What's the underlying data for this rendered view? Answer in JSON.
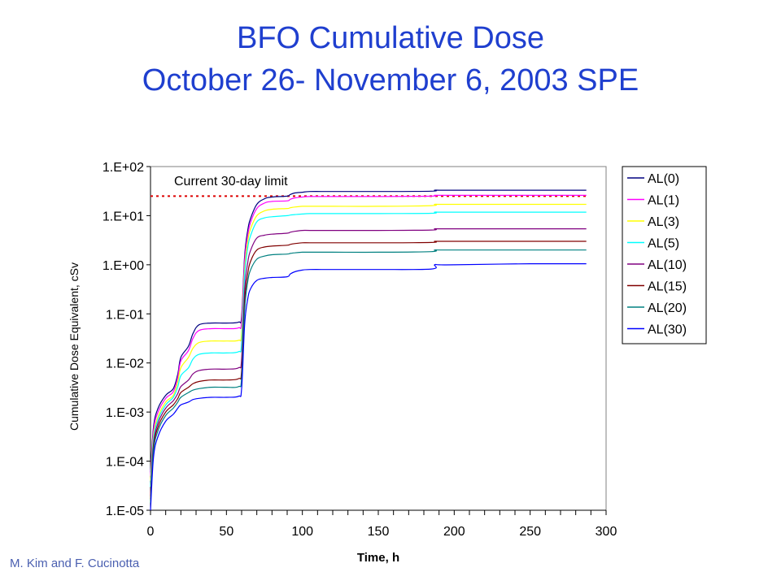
{
  "slide": {
    "title_line1": "BFO Cumulative Dose",
    "title_line2": "October 26- November 6, 2003 SPE",
    "credit": "M. Kim and F. Cucinotta"
  },
  "chart_data": {
    "type": "line",
    "title": "BFO Cumulative Dose October 26- November 6, 2003 SPE",
    "xlabel": "Time, h",
    "ylabel": "Cumulative Dose Equivalent, cSv",
    "xlim": [
      0,
      300
    ],
    "ylim": [
      1e-05,
      100
    ],
    "y_scale": "log",
    "x_ticks": [
      0,
      50,
      100,
      150,
      200,
      250,
      300
    ],
    "y_ticks": [
      {
        "value": 1e-05,
        "label": "1.E-05"
      },
      {
        "value": 0.0001,
        "label": "1.E-04"
      },
      {
        "value": 0.001,
        "label": "1.E-03"
      },
      {
        "value": 0.01,
        "label": "1.E-02"
      },
      {
        "value": 0.1,
        "label": "1.E-01"
      },
      {
        "value": 1,
        "label": "1.E+00"
      },
      {
        "value": 10,
        "label": "1.E+01"
      },
      {
        "value": 100,
        "label": "1.E+02"
      }
    ],
    "grid": false,
    "legend_position": "right",
    "reference_line": {
      "label": "Current 30-day limit",
      "value": 25,
      "color": "#dd0000"
    },
    "x": [
      0,
      2,
      5,
      10,
      15,
      18,
      20,
      25,
      28,
      32,
      40,
      50,
      58,
      60,
      62,
      64,
      66,
      70,
      75,
      80,
      90,
      92,
      95,
      100,
      105,
      120,
      150,
      185,
      187,
      190,
      200,
      250,
      287
    ],
    "series": [
      {
        "name": "AL(0)",
        "color": "#000080",
        "values": [
          6e-05,
          0.0005,
          0.0012,
          0.0022,
          0.003,
          0.006,
          0.013,
          0.022,
          0.04,
          0.06,
          0.065,
          0.065,
          0.068,
          0.09,
          1.5,
          5,
          9,
          17,
          22,
          24,
          25,
          27,
          29,
          30,
          31,
          31,
          31,
          31.5,
          33,
          33,
          33,
          33,
          33
        ]
      },
      {
        "name": "AL(1)",
        "color": "#ff00ff",
        "values": [
          5e-05,
          0.00042,
          0.001,
          0.0019,
          0.0026,
          0.0052,
          0.011,
          0.018,
          0.032,
          0.046,
          0.05,
          0.05,
          0.052,
          0.07,
          1.2,
          4,
          7.5,
          14,
          18,
          19.5,
          20,
          21.5,
          23,
          24,
          24.5,
          24.5,
          24.5,
          25,
          26,
          26,
          26,
          26,
          26
        ]
      },
      {
        "name": "AL(3)",
        "color": "#ffff00",
        "values": [
          4e-05,
          0.00033,
          0.0008,
          0.0016,
          0.0022,
          0.0042,
          0.008,
          0.013,
          0.02,
          0.026,
          0.028,
          0.028,
          0.029,
          0.04,
          0.8,
          3,
          5.5,
          10,
          12.5,
          13.5,
          14,
          14.5,
          15,
          15.5,
          15.5,
          15.5,
          15.5,
          16,
          17,
          17,
          17,
          17,
          17
        ]
      },
      {
        "name": "AL(5)",
        "color": "#00ffff",
        "values": [
          3e-05,
          0.00028,
          0.0007,
          0.0014,
          0.002,
          0.0033,
          0.0055,
          0.008,
          0.012,
          0.015,
          0.016,
          0.016,
          0.017,
          0.025,
          0.6,
          2.2,
          4,
          7.5,
          9,
          9.5,
          10,
          10.3,
          10.5,
          10.8,
          11,
          11,
          11,
          11.2,
          11.8,
          11.8,
          11.8,
          11.8,
          11.8
        ]
      },
      {
        "name": "AL(10)",
        "color": "#800080",
        "values": [
          2e-05,
          0.00022,
          0.0006,
          0.0012,
          0.0017,
          0.0024,
          0.0033,
          0.0045,
          0.006,
          0.007,
          0.0075,
          0.0075,
          0.008,
          0.012,
          0.3,
          1.1,
          2,
          3.5,
          4,
          4.2,
          4.4,
          4.6,
          4.8,
          5,
          5,
          5,
          5,
          5.1,
          5.4,
          5.4,
          5.4,
          5.4,
          5.4
        ]
      },
      {
        "name": "AL(15)",
        "color": "#800000",
        "values": [
          1.7e-05,
          0.00019,
          0.0005,
          0.001,
          0.0014,
          0.0019,
          0.0025,
          0.0032,
          0.0038,
          0.0042,
          0.0045,
          0.0045,
          0.0048,
          0.007,
          0.18,
          0.65,
          1.2,
          2,
          2.3,
          2.4,
          2.5,
          2.6,
          2.7,
          2.8,
          2.8,
          2.8,
          2.8,
          2.85,
          3.0,
          3.0,
          3.0,
          3.0,
          3.0
        ]
      },
      {
        "name": "AL(20)",
        "color": "#008080",
        "values": [
          1.4e-05,
          0.00016,
          0.00042,
          0.00085,
          0.0012,
          0.0016,
          0.002,
          0.0025,
          0.0028,
          0.003,
          0.0032,
          0.0032,
          0.0033,
          0.005,
          0.12,
          0.45,
          0.8,
          1.3,
          1.5,
          1.6,
          1.65,
          1.7,
          1.75,
          1.8,
          1.8,
          1.8,
          1.8,
          1.85,
          2.0,
          2.0,
          2.0,
          2.0,
          2.0
        ]
      },
      {
        "name": "AL(30)",
        "color": "#0000ff",
        "values": [
          1e-05,
          0.00012,
          0.00032,
          0.00065,
          0.0009,
          0.0012,
          0.0014,
          0.0016,
          0.0018,
          0.0019,
          0.002,
          0.002,
          0.0021,
          0.003,
          0.06,
          0.2,
          0.33,
          0.48,
          0.53,
          0.55,
          0.57,
          0.65,
          0.72,
          0.78,
          0.8,
          0.8,
          0.8,
          0.82,
          1.0,
          1.0,
          1.0,
          1.05,
          1.05
        ]
      }
    ]
  }
}
